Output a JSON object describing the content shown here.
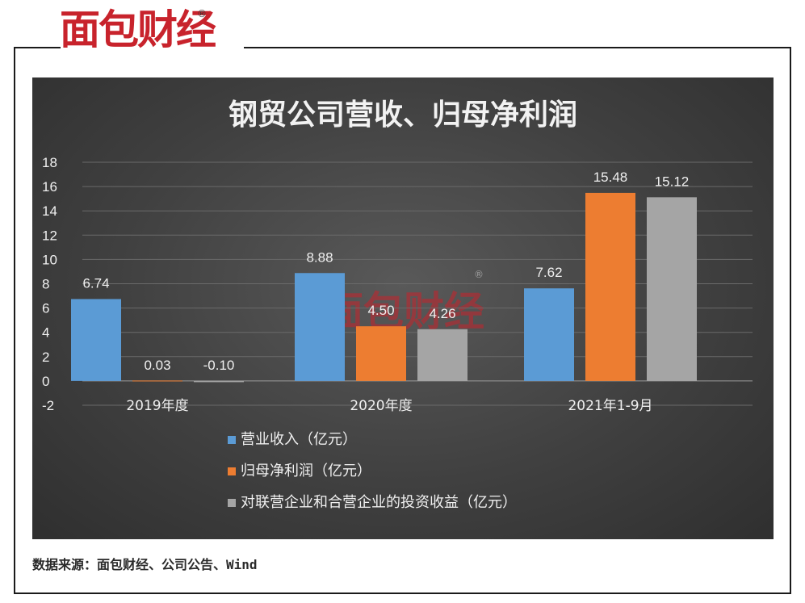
{
  "brand": {
    "logo_text": "面包财经",
    "reg_mark": "®"
  },
  "colors": {
    "frame": "#1a1a1a",
    "brand_red": "#c8232c"
  },
  "source_note": "数据来源：面包财经、公司公告、Wind",
  "chart_data": {
    "type": "bar",
    "title": "钢贸公司营收、归母净利润",
    "categories": [
      "2019年度",
      "2020年度",
      "2021年1-9月"
    ],
    "series": [
      {
        "name": "营业收入（亿元）",
        "color": "#5b9bd5",
        "values": [
          6.74,
          8.88,
          7.62
        ],
        "labels": [
          "6.74",
          "8.88",
          "7.62"
        ]
      },
      {
        "name": "归母净利润（亿元）",
        "color": "#ed7d31",
        "values": [
          0.03,
          4.5,
          15.48
        ],
        "labels": [
          "0.03",
          "4.50",
          "15.48"
        ]
      },
      {
        "name": "对联营企业和合营企业的投资收益（亿元）",
        "color": "#a5a5a5",
        "values": [
          -0.1,
          4.26,
          15.12
        ],
        "labels": [
          "-0.10",
          "4.26",
          "15.12"
        ]
      }
    ],
    "ylim": [
      -2,
      18
    ],
    "yticks": [
      "-2",
      "0",
      "2",
      "4",
      "6",
      "8",
      "10",
      "12",
      "14",
      "16",
      "18"
    ],
    "grid": true,
    "legend_position": "bottom-left"
  }
}
